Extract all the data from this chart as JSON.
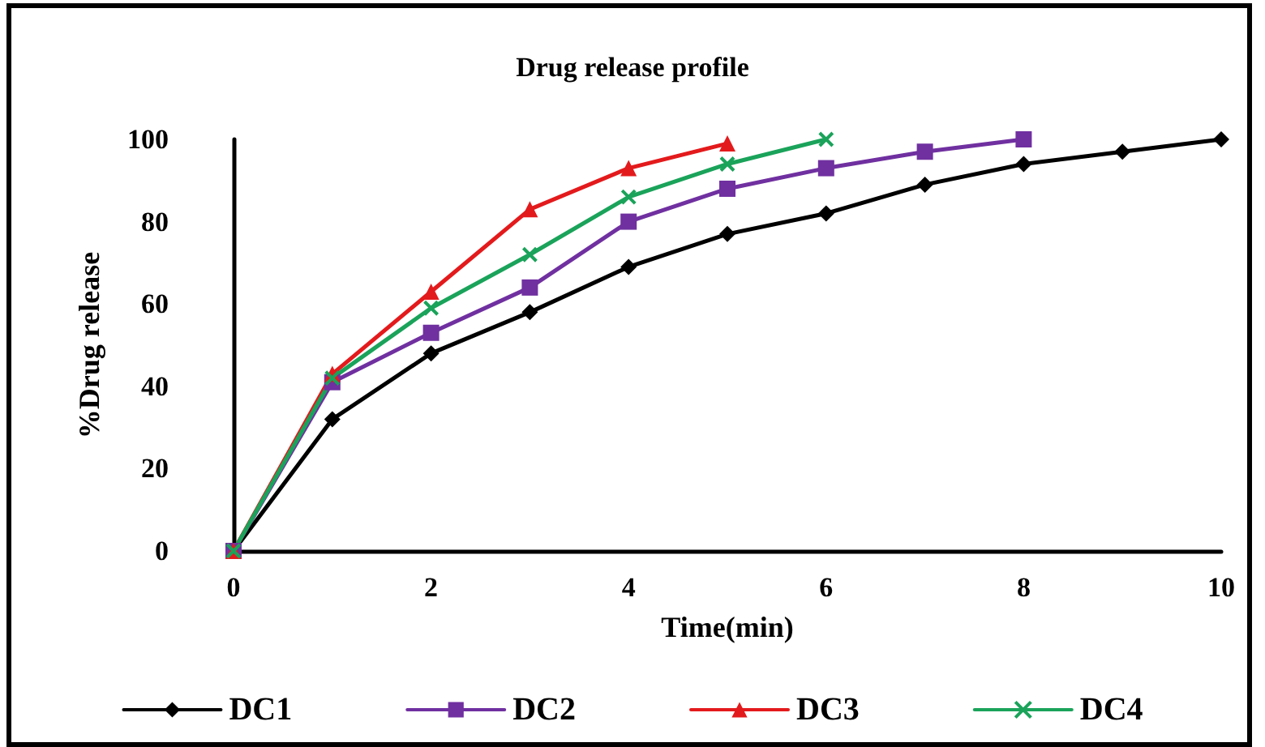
{
  "chart_data": {
    "type": "line",
    "title": "Drug release profile",
    "xlabel": "Time(min)",
    "ylabel": "%Drug release",
    "xlim": [
      0,
      10
    ],
    "xticks": [
      0,
      2,
      4,
      6,
      8,
      10
    ],
    "ylim": [
      0,
      100
    ],
    "yticks": [
      0,
      20,
      40,
      60,
      80,
      100
    ],
    "grid": false,
    "legend": "bottom",
    "series": [
      {
        "name": "DC1",
        "color": "#000000",
        "marker": "diamond",
        "x": [
          0,
          1,
          2,
          3,
          4,
          5,
          6,
          7,
          8,
          9,
          10
        ],
        "values": [
          0,
          32,
          48,
          58,
          69,
          77,
          82,
          89,
          94,
          97,
          100
        ]
      },
      {
        "name": "DC2",
        "color": "#7030a0",
        "marker": "square",
        "x": [
          0,
          1,
          2,
          3,
          4,
          5,
          6,
          7,
          8
        ],
        "values": [
          0,
          41,
          53,
          64,
          80,
          88,
          93,
          97,
          100
        ]
      },
      {
        "name": "DC3",
        "color": "#e31a1c",
        "marker": "triangle",
        "x": [
          0,
          1,
          2,
          3,
          4,
          5
        ],
        "values": [
          0,
          43,
          63,
          83,
          93,
          99
        ]
      },
      {
        "name": "DC4",
        "color": "#1aa35a",
        "marker": "cross",
        "x": [
          0,
          1,
          2,
          3,
          4,
          5,
          6
        ],
        "values": [
          0,
          42,
          59,
          72,
          86,
          94,
          100
        ]
      }
    ]
  }
}
